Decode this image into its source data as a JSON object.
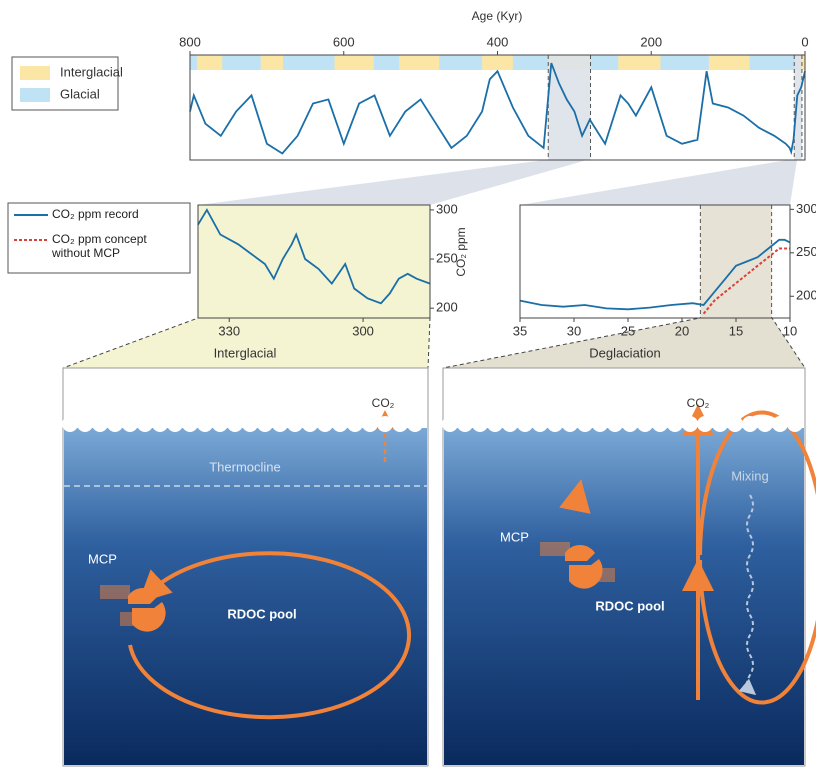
{
  "chart_data": [
    {
      "type": "line",
      "xlabel": "Age (Kyr)",
      "xlim": [
        800,
        0
      ],
      "xticks": [
        800,
        600,
        400,
        200,
        0
      ],
      "ylim": [
        170,
        300
      ],
      "bands": [
        {
          "name": "Glacial",
          "color": "#bfe3f5"
        },
        {
          "name": "Interglacial",
          "color": "#fbe6a6",
          "ranges": [
            [
              791,
              758
            ],
            [
              708,
              679
            ],
            [
              612,
              561
            ],
            [
              528,
              476
            ],
            [
              420,
              380
            ],
            [
              334,
              279
            ],
            [
              243,
              188
            ],
            [
              125,
              72
            ],
            [
              9,
              0
            ]
          ]
        }
      ],
      "highlights": [
        [
          334,
          279
        ],
        [
          14,
          4
        ]
      ],
      "series": [
        {
          "color": "#1a6fa8",
          "x": [
            800,
            795,
            780,
            760,
            740,
            720,
            700,
            680,
            660,
            640,
            620,
            600,
            580,
            560,
            540,
            520,
            500,
            480,
            460,
            440,
            420,
            410,
            400,
            380,
            360,
            340,
            330,
            320,
            310,
            300,
            290,
            280,
            260,
            240,
            230,
            220,
            200,
            180,
            160,
            140,
            128,
            120,
            100,
            80,
            60,
            40,
            25,
            20,
            18,
            15,
            10,
            5,
            0
          ],
          "values": [
            230,
            250,
            215,
            200,
            230,
            250,
            190,
            178,
            200,
            240,
            245,
            190,
            240,
            250,
            200,
            230,
            245,
            215,
            185,
            200,
            230,
            270,
            280,
            235,
            200,
            185,
            290,
            265,
            245,
            230,
            200,
            220,
            190,
            250,
            240,
            225,
            260,
            200,
            190,
            195,
            280,
            240,
            235,
            225,
            210,
            200,
            190,
            185,
            180,
            195,
            250,
            260,
            280
          ]
        }
      ]
    },
    {
      "type": "line",
      "ylabel": "CO₂ ppm",
      "xlim": [
        337,
        285
      ],
      "xticks": [
        330,
        300
      ],
      "ylim": [
        190,
        305
      ],
      "yticks": [
        200,
        250,
        300
      ],
      "series": [
        {
          "color": "#1a6fa8",
          "x": [
            337,
            335,
            332,
            328,
            325,
            322,
            320,
            318,
            316,
            315,
            313,
            310,
            307,
            304,
            302,
            299,
            296,
            294,
            292,
            290,
            288,
            285
          ],
          "values": [
            285,
            300,
            275,
            265,
            255,
            245,
            230,
            250,
            265,
            275,
            250,
            240,
            225,
            245,
            220,
            210,
            205,
            215,
            230,
            235,
            230,
            225
          ]
        }
      ]
    },
    {
      "type": "line",
      "xlim": [
        35,
        10
      ],
      "xticks": [
        35,
        30,
        25,
        20,
        15,
        10
      ],
      "ylim": [
        175,
        305
      ],
      "yticks": [
        200,
        250,
        300
      ],
      "highlights": [
        [
          18.3,
          11.7
        ]
      ],
      "series": [
        {
          "color": "#1a6fa8",
          "x": [
            35,
            33,
            31,
            29,
            27,
            25,
            23,
            21,
            19,
            18,
            17,
            16,
            15,
            14,
            13,
            12,
            11,
            10.5,
            10
          ],
          "values": [
            195,
            190,
            188,
            190,
            186,
            185,
            187,
            190,
            192,
            190,
            205,
            220,
            235,
            240,
            245,
            255,
            265,
            265,
            262
          ]
        },
        {
          "color": "#d9413a",
          "dash": true,
          "x": [
            18,
            17,
            16,
            15,
            14,
            13,
            12,
            11,
            10
          ],
          "values": [
            180,
            195,
            205,
            215,
            225,
            235,
            245,
            255,
            255
          ]
        }
      ]
    }
  ],
  "legend": [
    {
      "name": "CO₂ ppm record",
      "color": "#1a6fa8"
    },
    {
      "name": "CO₂ ppm concept without MCP",
      "color": "#d9413a",
      "dash": true
    }
  ],
  "diagram": {
    "panels": [
      {
        "title": "Interglacial",
        "co2": "CO₂",
        "thermocline": "Thermocline",
        "mcp": "MCP",
        "pool": "RDOC pool"
      },
      {
        "title": "Deglaciation",
        "co2": "CO₂",
        "mixing": "Mixing",
        "mcp": "MCP",
        "pool": "RDOC pool"
      }
    ]
  }
}
